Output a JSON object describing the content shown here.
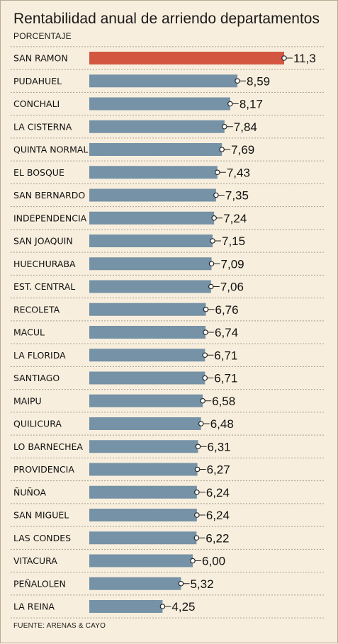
{
  "title": "Rentabilidad anual de arriendo departamentos",
  "subtitle": "PORCENTAJE",
  "source": "FUENTE: ARENAS & CAYO",
  "colors": {
    "highlight": "#d35640",
    "bar": "#7592a6",
    "background": "#f8eedd",
    "separator": "#a89e8e"
  },
  "chart_data": {
    "type": "bar",
    "orientation": "horizontal",
    "highlight_index": 0,
    "categories": [
      "SAN RAMON",
      "PUDAHUEL",
      "CONCHALI",
      "LA CISTERNA",
      "QUINTA NORMAL",
      "EL BOSQUE",
      "SAN BERNARDO",
      "INDEPENDENCIA",
      "SAN JOAQUIN",
      "HUECHURABA",
      "EST. CENTRAL",
      "RECOLETA",
      "MACUL",
      "LA FLORIDA",
      "SANTIAGO",
      "MAIPU",
      "QUILICURA",
      "LO BARNECHEA",
      "PROVIDENCIA",
      "ÑUÑOA",
      "SAN MIGUEL",
      "LAS CONDES",
      "VITACURA",
      "PEÑALOLEN",
      "LA REINA"
    ],
    "values": [
      11.3,
      8.59,
      8.17,
      7.84,
      7.69,
      7.43,
      7.35,
      7.24,
      7.15,
      7.09,
      7.06,
      6.76,
      6.74,
      6.71,
      6.71,
      6.58,
      6.48,
      6.31,
      6.27,
      6.24,
      6.24,
      6.22,
      6.0,
      5.32,
      4.25
    ],
    "value_labels": [
      "11,3",
      "8,59",
      "8,17",
      "7,84",
      "7,69",
      "7,43",
      "7,35",
      "7,24",
      "7,15",
      "7,09",
      "7,06",
      "6,76",
      "6,74",
      "6,71",
      "6,71",
      "6,58",
      "6,48",
      "6,31",
      "6,27",
      "6,24",
      "6,24",
      "6,22",
      "6,00",
      "5,32",
      "4,25"
    ],
    "xlim": [
      0,
      11.3
    ],
    "grid": false
  }
}
